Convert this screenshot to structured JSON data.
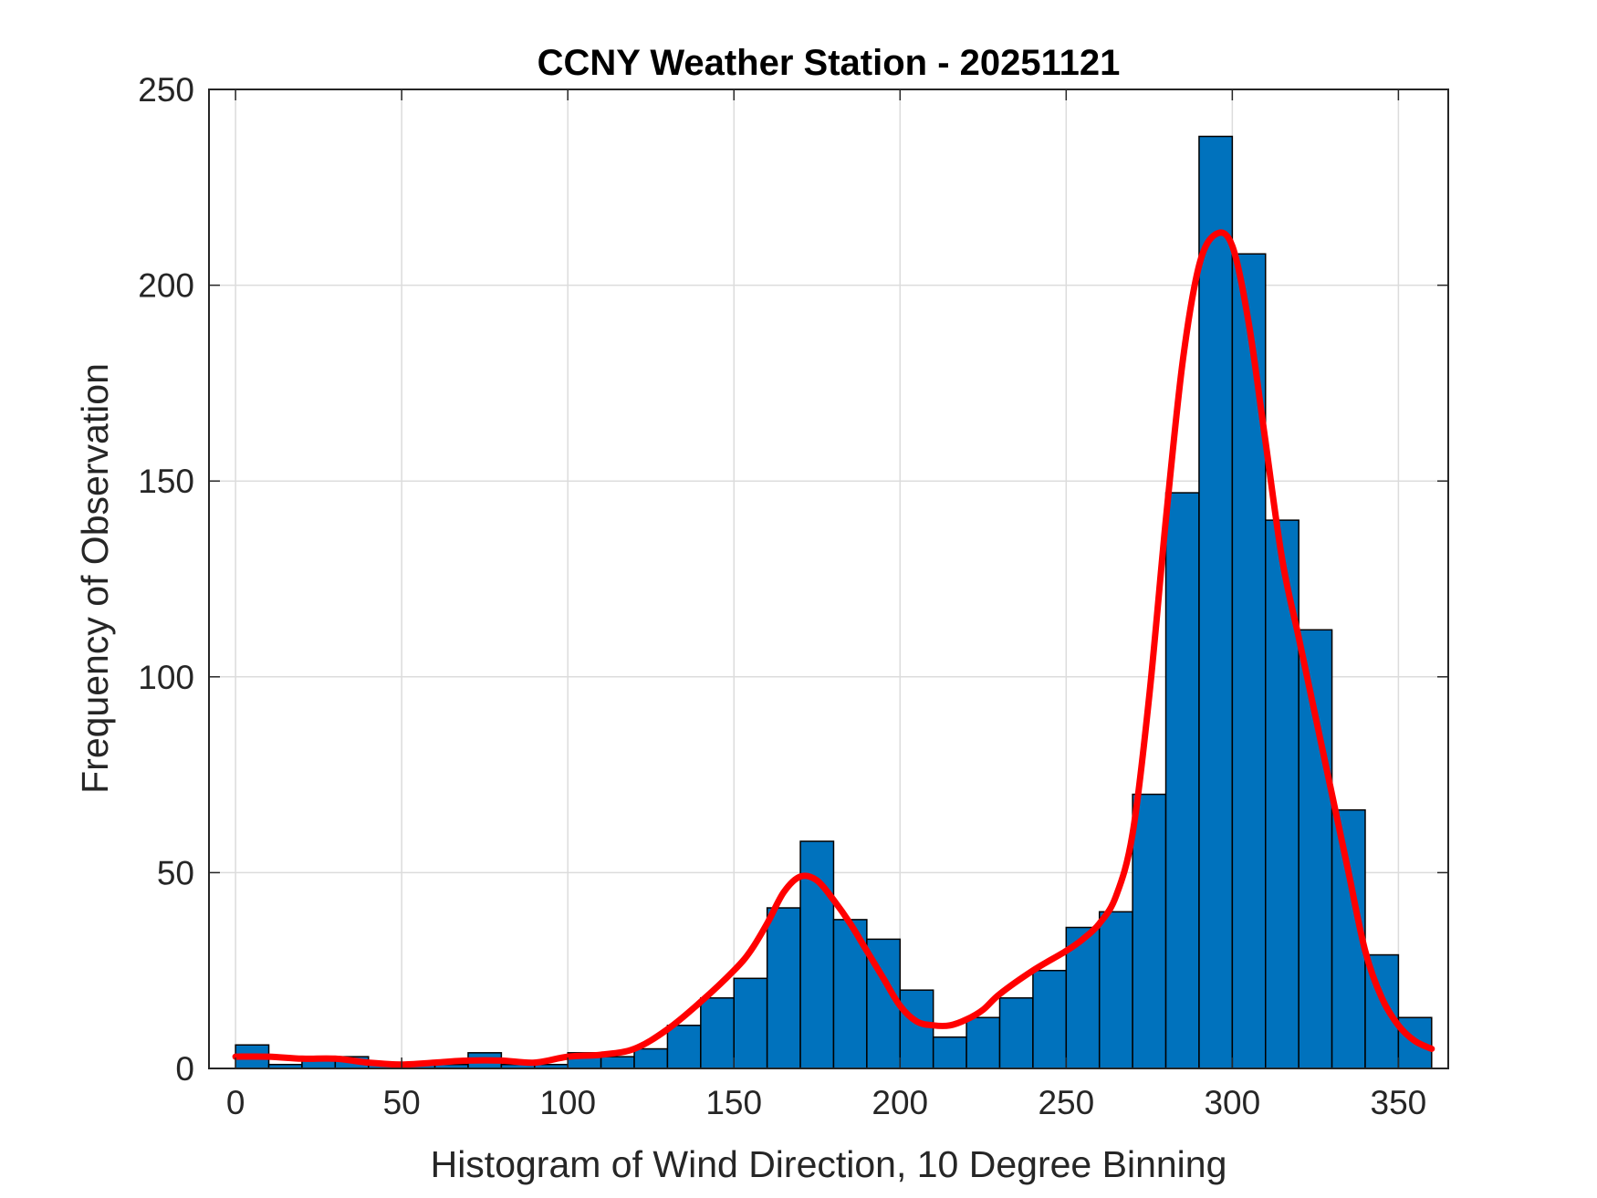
{
  "chart_data": {
    "type": "bar",
    "title": "CCNY Weather Station - 20251121",
    "xlabel": "Histogram of Wind Direction, 10 Degree Binning",
    "ylabel": "Frequency of Observation",
    "xlim": [
      -8,
      365
    ],
    "ylim": [
      0,
      250
    ],
    "xticks": [
      0,
      50,
      100,
      150,
      200,
      250,
      300,
      350
    ],
    "yticks": [
      0,
      50,
      100,
      150,
      200,
      250
    ],
    "grid": true,
    "bin_width": 10,
    "bin_edges": [
      0,
      10,
      20,
      30,
      40,
      50,
      60,
      70,
      80,
      90,
      100,
      110,
      120,
      130,
      140,
      150,
      160,
      170,
      180,
      190,
      200,
      210,
      220,
      230,
      240,
      250,
      260,
      270,
      280,
      290,
      300,
      310,
      320,
      330,
      340,
      350,
      360
    ],
    "values": [
      6,
      1,
      3,
      3,
      1,
      1,
      1,
      4,
      1,
      1,
      4,
      3,
      5,
      11,
      18,
      23,
      41,
      58,
      38,
      33,
      20,
      8,
      13,
      18,
      25,
      36,
      40,
      70,
      147,
      238,
      208,
      140,
      112,
      66,
      29,
      13
    ],
    "series": [
      {
        "name": "Frequency of Observation",
        "type": "bar",
        "color": "#0072BD",
        "values": [
          6,
          1,
          3,
          3,
          1,
          1,
          1,
          4,
          1,
          1,
          4,
          3,
          5,
          11,
          18,
          23,
          41,
          58,
          38,
          33,
          20,
          8,
          13,
          18,
          25,
          36,
          40,
          70,
          147,
          238,
          208,
          140,
          112,
          66,
          29,
          13
        ]
      },
      {
        "name": "Smoothed fit",
        "type": "line",
        "color": "#FF0000",
        "x": [
          0,
          10,
          20,
          30,
          40,
          50,
          60,
          70,
          80,
          90,
          100,
          110,
          120,
          130,
          140,
          150,
          155,
          160,
          165,
          170,
          175,
          180,
          185,
          190,
          195,
          200,
          205,
          210,
          215,
          220,
          225,
          230,
          240,
          250,
          255,
          260,
          265,
          270,
          275,
          280,
          285,
          290,
          295,
          300,
          305,
          310,
          315,
          320,
          325,
          330,
          335,
          340,
          345,
          350,
          355,
          360
        ],
        "y": [
          3,
          3,
          2.5,
          2.5,
          1.5,
          1,
          1.5,
          2,
          2,
          1.5,
          3,
          3.5,
          5,
          10,
          17,
          25,
          30,
          37,
          45,
          49,
          48,
          43,
          37,
          30,
          23,
          16,
          12,
          11,
          11,
          12.5,
          15,
          19,
          25,
          30,
          33,
          37,
          44,
          60,
          95,
          140,
          180,
          205,
          213,
          210,
          190,
          160,
          130,
          110,
          90,
          70,
          50,
          30,
          18,
          11,
          7,
          5
        ]
      }
    ]
  }
}
